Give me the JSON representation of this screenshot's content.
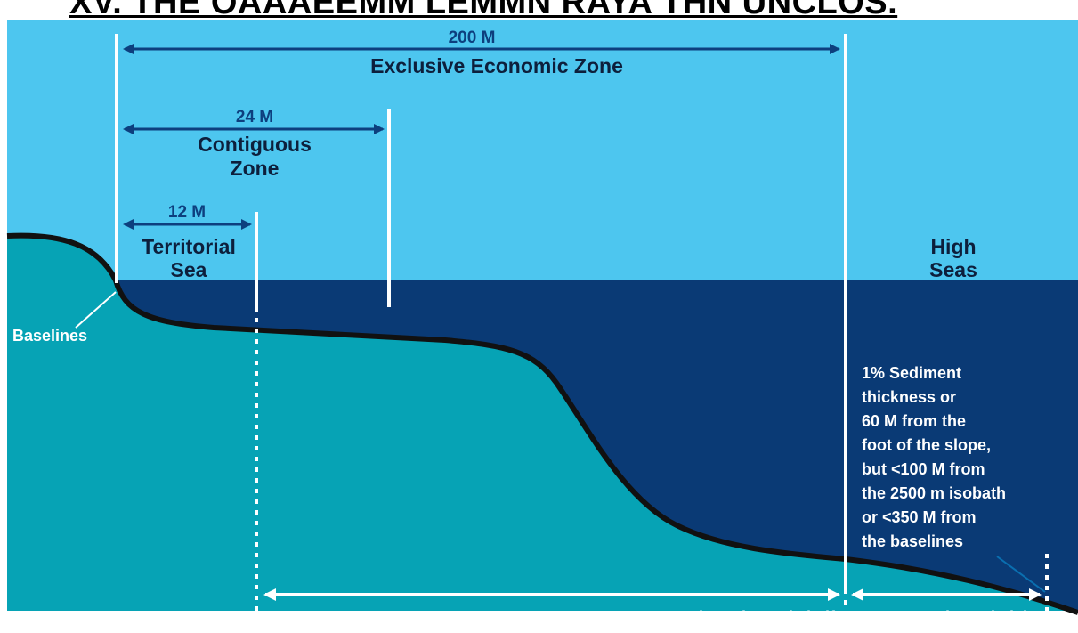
{
  "title": "XV. THE OAAAEEMM LEMMN RAYA THN UNCLOS.",
  "colors": {
    "sky": "#4dc6ef",
    "deep_water": "#0a3a75",
    "seabed": "#06a3b5",
    "boundary_line": "#ffffff",
    "dimension_arrow": "#0d3f7e",
    "seabed_outline": "#111111"
  },
  "distances": {
    "eez": "200 M",
    "contiguous": "24 M",
    "territorial": "12 M"
  },
  "zones": {
    "eez_label": "Exclusive Economic Zone",
    "contiguous_line1": "Contiguous",
    "contiguous_line2": "Zone",
    "territorial_line1": "Territorial",
    "territorial_line2": "Sea",
    "high_seas_line1": "High",
    "high_seas_line2": "Seas"
  },
  "labels": {
    "baselines": "Baselines",
    "legal_shelf": "Legal continental shelf",
    "abyssal_plain": "Abyssal plain"
  },
  "note": [
    "1% Sediment",
    "thickness or",
    "60 M from the",
    "foot of the slope,",
    "but <100 M from",
    "the 2500 m isobath",
    "or <350 M from",
    "the baselines"
  ]
}
